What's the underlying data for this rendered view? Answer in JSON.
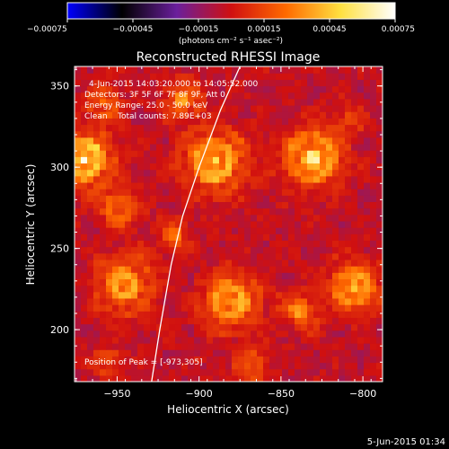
{
  "chart_data": {
    "type": "heatmap",
    "title": "Reconstructed RHESSI Image",
    "xlabel": "Heliocentric X (arcsec)",
    "ylabel": "Heliocentric Y (arcsec)",
    "xlim": [
      -976,
      -788
    ],
    "ylim": [
      168,
      362
    ],
    "xticks": [
      -950,
      -900,
      -850,
      -800
    ],
    "xtick_labels": [
      "−950",
      "−900",
      "−850",
      "−800"
    ],
    "yticks": [
      200,
      250,
      300,
      350
    ],
    "ytick_labels": [
      "200",
      "250",
      "300",
      "350"
    ],
    "colorbar": {
      "range": [
        -0.00075,
        0.00075
      ],
      "ticks": [
        -0.00075,
        -0.00045,
        -0.00015,
        0.00015,
        0.00045,
        0.00075
      ],
      "tick_labels": [
        "−0.00075",
        "−0.00045",
        "−0.00015",
        "0.00015",
        "0.00045",
        "0.00075"
      ],
      "units": "(photons cm⁻² s⁻¹ asec⁻²)",
      "colormap_stops": [
        "#0000ff",
        "#000000",
        "#6a1f9c",
        "#d01010",
        "#ff6a00",
        "#ffe040",
        "#ffffff"
      ]
    },
    "annotations": [
      "4-Jun-2015 14:03:20.000 to 14:05:52.000",
      "Detectors: 3F 5F 6F 7F 8F 9F, Att 0",
      "Energy Range: 25.0 - 50.0 keV",
      "Clean    Total counts: 7.89E+03"
    ],
    "peak_label": "Position of Peak = [-973,305]",
    "peak": [
      -973,
      305
    ],
    "limb_curve": [
      [
        -929,
        168
      ],
      [
        -924,
        200
      ],
      [
        -917,
        240
      ],
      [
        -910,
        270
      ],
      [
        -900,
        300
      ],
      [
        -887,
        335
      ],
      [
        -875,
        362
      ]
    ],
    "sources": [
      {
        "x": -970,
        "y": 305,
        "value": 0.00075,
        "spread": 11
      },
      {
        "x": -948,
        "y": 275,
        "value": 0.0004,
        "spread": 8
      },
      {
        "x": -945,
        "y": 228,
        "value": 0.0005,
        "spread": 12
      },
      {
        "x": -958,
        "y": 340,
        "value": 0.00035,
        "spread": 7
      },
      {
        "x": -890,
        "y": 304,
        "value": 0.0006,
        "spread": 13
      },
      {
        "x": -910,
        "y": 342,
        "value": 0.0004,
        "spread": 8
      },
      {
        "x": -830,
        "y": 306,
        "value": 0.00065,
        "spread": 12
      },
      {
        "x": -880,
        "y": 218,
        "value": 0.00055,
        "spread": 12
      },
      {
        "x": -805,
        "y": 227,
        "value": 0.0006,
        "spread": 10
      },
      {
        "x": -838,
        "y": 212,
        "value": 0.0004,
        "spread": 8
      },
      {
        "x": -915,
        "y": 258,
        "value": 0.0003,
        "spread": 7
      },
      {
        "x": -955,
        "y": 180,
        "value": 0.0003,
        "spread": 6
      },
      {
        "x": -868,
        "y": 178,
        "value": 0.0003,
        "spread": 7
      },
      {
        "x": -808,
        "y": 330,
        "value": 0.00025,
        "spread": 6
      }
    ]
  },
  "timestamp": "5-Jun-2015 01:34"
}
